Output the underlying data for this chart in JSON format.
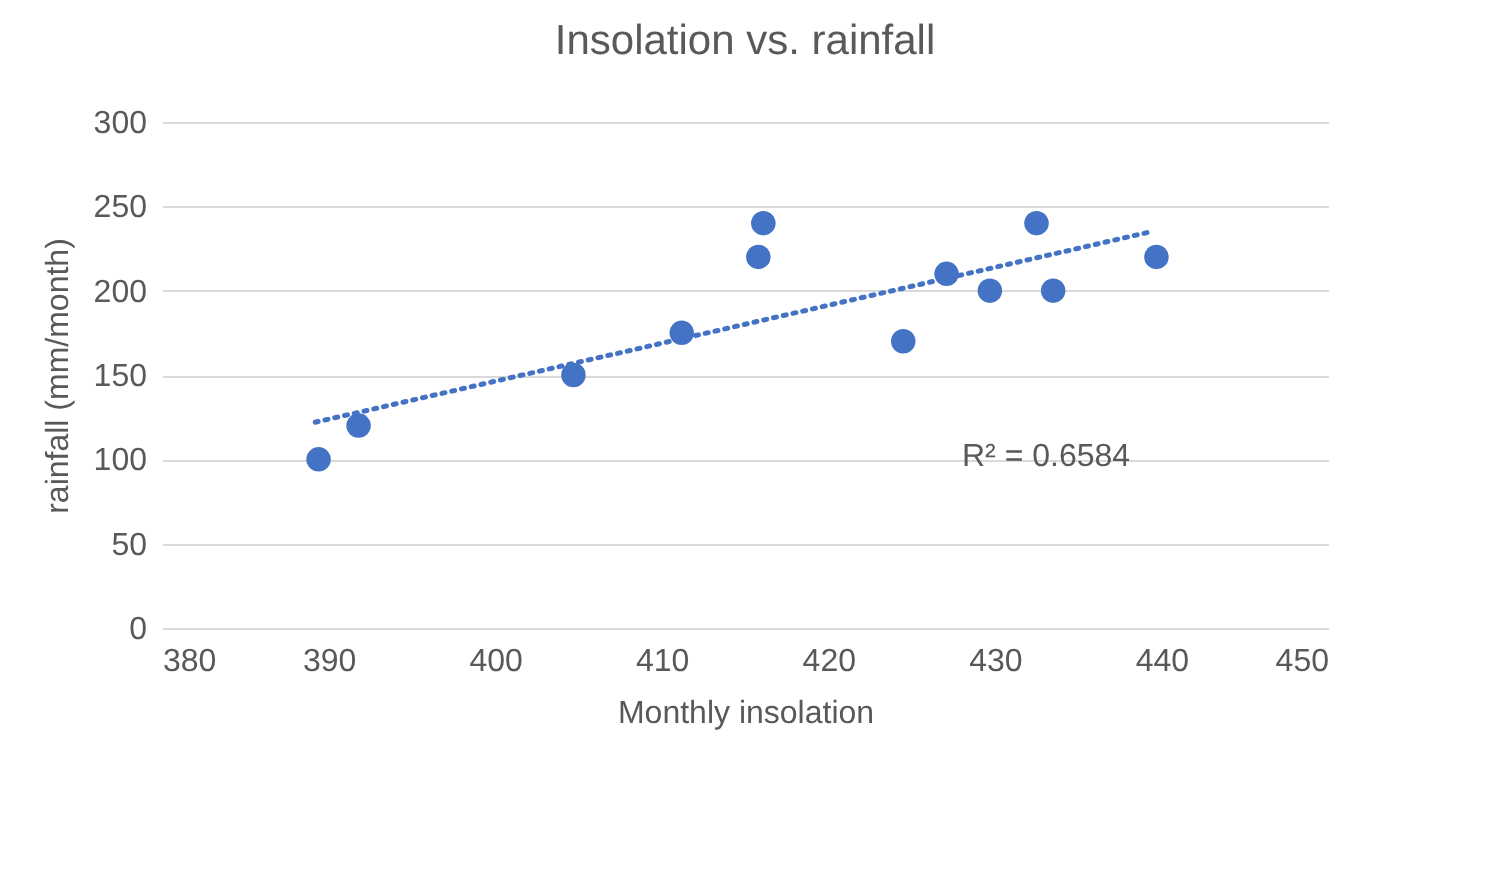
{
  "chart_data": {
    "type": "scatter",
    "title": "Insolation vs. rainfall",
    "xlabel": "Monthly insolation",
    "ylabel": "rainfall (mm/month)",
    "xlim": [
      380,
      450
    ],
    "xticks": [
      380,
      390,
      400,
      410,
      420,
      430,
      440,
      450
    ],
    "ylim": [
      0,
      300
    ],
    "yticks": [
      0,
      50,
      100,
      150,
      200,
      250,
      300
    ],
    "grid": "y",
    "series": [
      {
        "marker": "circle",
        "color": "#4472c4",
        "x": [
          389.4,
          391.8,
          404.7,
          411.2,
          415.8,
          416.1,
          424.5,
          427.1,
          429.7,
          432.5,
          433.5,
          439.7
        ],
        "values": [
          100,
          120,
          150,
          175,
          220,
          240,
          170,
          210,
          200,
          240,
          200,
          220
        ]
      },
      {
        "type": "line",
        "marker": "none",
        "color": "#4472c4",
        "line_style": "dotted",
        "x": [
          389.2,
          439.4
        ],
        "values": [
          122,
          235
        ]
      }
    ],
    "annotations": [
      "R² = 0.6584"
    ]
  }
}
